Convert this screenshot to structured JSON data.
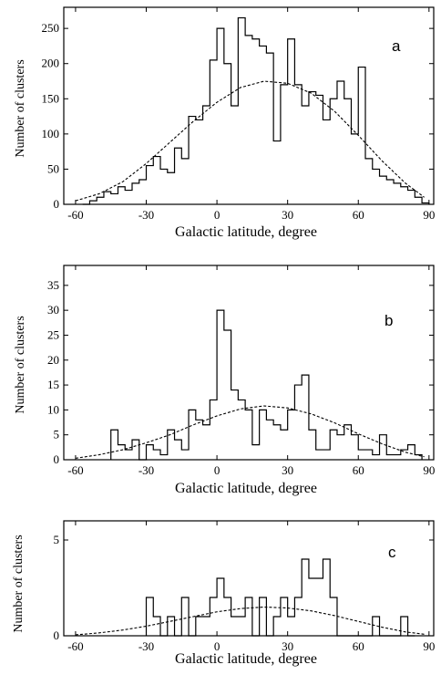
{
  "chart_data": [
    {
      "type": "histogram",
      "panel_label": "a",
      "xlabel": "Galactic latitude, degree",
      "ylabel": "Number of clusters",
      "xlim": [
        -65,
        92
      ],
      "ylim": [
        0,
        280
      ],
      "xticks": [
        -60,
        -30,
        0,
        30,
        60,
        90
      ],
      "yticks": [
        0,
        50,
        100,
        150,
        200,
        250
      ],
      "grid": false,
      "bin_width": 3,
      "bin_starts": [
        -57,
        -54,
        -51,
        -48,
        -45,
        -42,
        -39,
        -36,
        -33,
        -30,
        -27,
        -24,
        -21,
        -18,
        -15,
        -12,
        -9,
        -6,
        -3,
        0,
        3,
        6,
        9,
        12,
        15,
        18,
        21,
        24,
        27,
        30,
        33,
        36,
        39,
        42,
        45,
        48,
        51,
        54,
        57,
        60,
        63,
        66,
        69,
        72,
        75,
        78,
        81,
        84,
        87
      ],
      "values": [
        0,
        5,
        10,
        18,
        15,
        25,
        20,
        30,
        35,
        55,
        68,
        50,
        45,
        80,
        65,
        125,
        120,
        140,
        205,
        250,
        200,
        140,
        265,
        240,
        235,
        225,
        215,
        90,
        170,
        235,
        170,
        140,
        160,
        155,
        120,
        150,
        175,
        150,
        100,
        195,
        65,
        50,
        40,
        35,
        30,
        25,
        20,
        10,
        2
      ],
      "fit_curve": {
        "style": "dashed",
        "x": [
          -60,
          -50,
          -40,
          -30,
          -20,
          -10,
          0,
          10,
          20,
          30,
          40,
          50,
          60,
          70,
          80,
          88
        ],
        "y": [
          5,
          15,
          32,
          58,
          88,
          118,
          145,
          166,
          175,
          172,
          158,
          132,
          98,
          62,
          30,
          10
        ]
      }
    },
    {
      "type": "histogram",
      "panel_label": "b",
      "xlabel": "Galactic latitude, degree",
      "ylabel": "Number of clusters",
      "xlim": [
        -65,
        92
      ],
      "ylim": [
        0,
        39
      ],
      "xticks": [
        -60,
        -30,
        0,
        30,
        60,
        90
      ],
      "yticks": [
        0,
        5,
        10,
        15,
        20,
        25,
        30,
        35
      ],
      "grid": false,
      "bin_width": 3,
      "bin_starts": [
        -45,
        -42,
        -39,
        -36,
        -33,
        -30,
        -27,
        -24,
        -21,
        -18,
        -15,
        -12,
        -9,
        -6,
        -3,
        0,
        3,
        6,
        9,
        12,
        15,
        18,
        21,
        24,
        27,
        30,
        33,
        36,
        39,
        42,
        45,
        48,
        51,
        54,
        57,
        60,
        63,
        66,
        69,
        72,
        75,
        78,
        81,
        84
      ],
      "values": [
        6,
        3,
        2,
        4,
        0,
        3,
        2,
        1,
        6,
        4,
        2,
        10,
        8,
        7,
        12,
        30,
        26,
        14,
        12,
        10,
        3,
        10,
        8,
        7,
        6,
        10,
        15,
        17,
        6,
        2,
        2,
        6,
        5,
        7,
        5,
        2,
        2,
        1,
        5,
        1,
        1,
        2,
        3,
        1
      ],
      "fit_curve": {
        "style": "dashed",
        "x": [
          -60,
          -50,
          -40,
          -30,
          -20,
          -10,
          0,
          10,
          20,
          30,
          40,
          50,
          60,
          70,
          80,
          88
        ],
        "y": [
          0.3,
          1.0,
          2.0,
          3.4,
          5.0,
          7.0,
          8.8,
          10.2,
          10.8,
          10.4,
          9.2,
          7.4,
          5.2,
          3.2,
          1.5,
          0.6
        ]
      }
    },
    {
      "type": "histogram",
      "panel_label": "c",
      "xlabel": "Galactic latitude, degree",
      "ylabel": "Number of clusters",
      "xlim": [
        -65,
        92
      ],
      "ylim": [
        0,
        6
      ],
      "xticks": [
        -60,
        -30,
        0,
        30,
        60,
        90
      ],
      "yticks": [
        0,
        5
      ],
      "grid": false,
      "bin_width": 3,
      "bin_starts": [
        -30,
        -27,
        -24,
        -21,
        -18,
        -15,
        -12,
        -9,
        -6,
        -3,
        0,
        3,
        6,
        9,
        12,
        15,
        18,
        21,
        24,
        27,
        30,
        33,
        36,
        39,
        42,
        45,
        48,
        51,
        54,
        57,
        60,
        63,
        66,
        69,
        72,
        75,
        78,
        81
      ],
      "values": [
        2,
        1,
        0,
        1,
        0,
        2,
        0,
        1,
        1,
        2,
        3,
        2,
        1,
        1,
        2,
        0,
        2,
        0,
        1,
        2,
        1,
        2,
        4,
        3,
        3,
        4,
        2,
        0,
        0,
        0,
        0,
        0,
        1,
        0,
        0,
        0,
        1,
        0
      ],
      "fit_curve": {
        "style": "dashed",
        "x": [
          -60,
          -50,
          -40,
          -30,
          -20,
          -10,
          0,
          10,
          20,
          30,
          40,
          50,
          60,
          70,
          80,
          88
        ],
        "y": [
          0.05,
          0.15,
          0.3,
          0.5,
          0.75,
          1.0,
          1.25,
          1.42,
          1.5,
          1.45,
          1.3,
          1.05,
          0.75,
          0.45,
          0.2,
          0.08
        ]
      }
    }
  ]
}
